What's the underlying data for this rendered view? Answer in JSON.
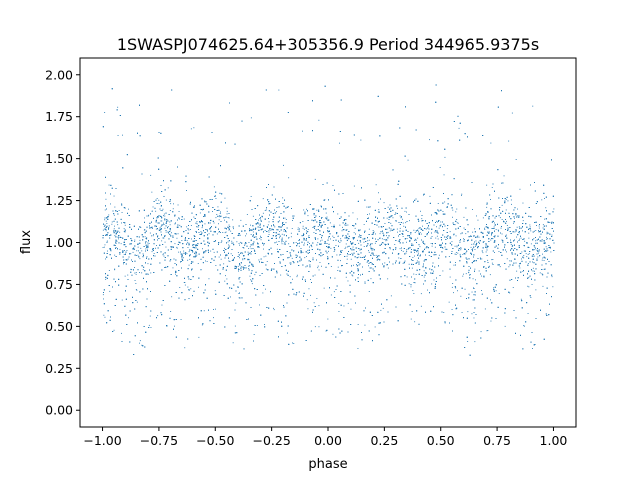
{
  "chart_data": {
    "type": "scatter",
    "title": "1SWASPJ074625.64+305356.9 Period 344965.9375s",
    "xlabel": "phase",
    "ylabel": "flux",
    "xlim": [
      -1.1,
      1.1
    ],
    "ylim": [
      -0.1,
      2.1
    ],
    "xticks": [
      -1.0,
      -0.75,
      -0.5,
      -0.25,
      0.0,
      0.25,
      0.5,
      0.75,
      1.0
    ],
    "xtick_labels": [
      "−1.00",
      "−0.75",
      "−0.50",
      "−0.25",
      "0.00",
      "0.25",
      "0.50",
      "0.75",
      "1.00"
    ],
    "yticks": [
      0.0,
      0.25,
      0.5,
      0.75,
      1.0,
      1.25,
      1.5,
      1.75,
      2.0
    ],
    "ytick_labels": [
      "0.00",
      "0.25",
      "0.50",
      "0.75",
      "1.00",
      "1.25",
      "1.50",
      "1.75",
      "2.00"
    ],
    "grid": false,
    "legend": "none",
    "point_color": "#1f77b4",
    "series": [
      {
        "description_visible": "dense phase-folded light curve; flux clusters around 1.0 with repeating pattern of high blocks (~1.1) and low blocks (~0.9) extending down to ~0.3",
        "points": [
          {
            "x": -0.98,
            "y": 1.1
          },
          {
            "x": -0.85,
            "y": 0.9
          },
          {
            "x": -0.75,
            "y": 1.12
          },
          {
            "x": -0.65,
            "y": 0.95
          },
          {
            "x": -0.5,
            "y": 1.1
          },
          {
            "x": -0.4,
            "y": 0.9
          },
          {
            "x": -0.27,
            "y": 1.1
          },
          {
            "x": -0.15,
            "y": 0.95
          },
          {
            "x": -0.03,
            "y": 1.08
          },
          {
            "x": 0.08,
            "y": 1.0
          },
          {
            "x": 0.15,
            "y": 0.95
          },
          {
            "x": 0.28,
            "y": 1.1
          },
          {
            "x": 0.4,
            "y": 0.95
          },
          {
            "x": 0.52,
            "y": 1.1
          },
          {
            "x": 0.62,
            "y": 0.92
          },
          {
            "x": 0.78,
            "y": 1.1
          },
          {
            "x": 0.88,
            "y": 0.92
          },
          {
            "x": 0.98,
            "y": 1.05
          }
        ]
      }
    ]
  }
}
